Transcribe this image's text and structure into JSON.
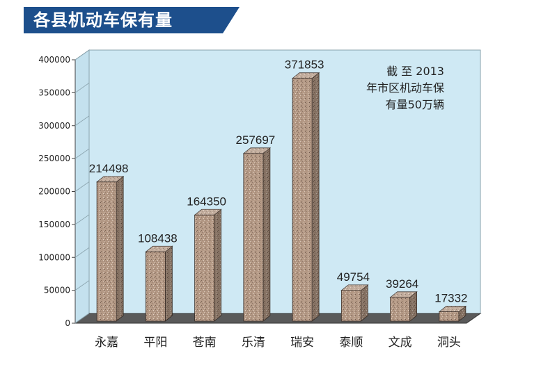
{
  "title": "各县机动车保有量",
  "colors": {
    "banner": "#1d4f8c",
    "plot_background": "#cfe9f4",
    "bar_fill": "#b59a86",
    "floor": "#5a5a5a"
  },
  "chart_data": {
    "type": "bar",
    "title": "各县机动车保有量",
    "categories": [
      "永嘉",
      "平阳",
      "苍南",
      "乐清",
      "瑞安",
      "泰顺",
      "文成",
      "洞头"
    ],
    "values": [
      214498,
      108438,
      164350,
      257697,
      371853,
      49754,
      39264,
      17332
    ],
    "data_labels": [
      "214498",
      "108438",
      "164350",
      "257697",
      "371853",
      "49754",
      "39264",
      "17332"
    ],
    "ylim": [
      0,
      400000
    ],
    "yticks": [
      "0",
      "50000",
      "100000",
      "150000",
      "200000",
      "250000",
      "300000",
      "350000",
      "400000"
    ],
    "annotation": [
      "截 至 2013",
      "年市区机动车保",
      "有量50万辆"
    ],
    "grid": false,
    "legend": "none"
  }
}
